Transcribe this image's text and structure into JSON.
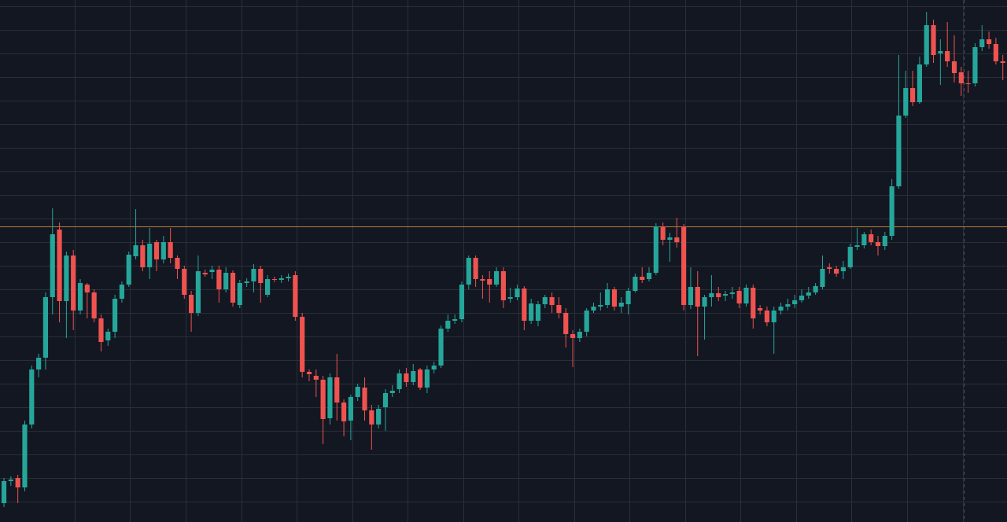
{
  "chart_data": {
    "type": "candlestick",
    "open": [
      24,
      52,
      56,
      44,
      124,
      194,
      209,
      286,
      372,
      281,
      339,
      269,
      302,
      292,
      259,
      231,
      242,
      284,
      302,
      338,
      352,
      324,
      356,
      334,
      356,
      336,
      322,
      289,
      266,
      317,
      318,
      321,
      296,
      317,
      276,
      304,
      306,
      322,
      289,
      309,
      308,
      310,
      314,
      261,
      191,
      186,
      181,
      132,
      184,
      152,
      129,
      159,
      171,
      142,
      124,
      146,
      164,
      169,
      189,
      178,
      194,
      171,
      194,
      199,
      246,
      256,
      258,
      302,
      336,
      309,
      309,
      302,
      319,
      284,
      286,
      297,
      256,
      256,
      277,
      286,
      276,
      266,
      239,
      234,
      242,
      269,
      274,
      276,
      296,
      274,
      277,
      294,
      312,
      309,
      317,
      376,
      359,
      362,
      376,
      276,
      299,
      274,
      286,
      291,
      288,
      290,
      294,
      278,
      298,
      272,
      269,
      254,
      269,
      274,
      277,
      282,
      288,
      292,
      299,
      324,
      322,
      319,
      324,
      350,
      352,
      366,
      356,
      351,
      364,
      427,
      517,
      552,
      534,
      582,
      632,
      596,
      599,
      586,
      572,
      558,
      558,
      604,
      614,
      608,
      586
    ],
    "high": [
      56,
      58,
      60,
      129,
      199,
      214,
      292,
      399,
      381,
      344,
      346,
      309,
      304,
      296,
      264,
      246,
      289,
      306,
      344,
      398,
      359,
      374,
      359,
      364,
      374,
      339,
      326,
      294,
      339,
      321,
      326,
      326,
      324,
      320,
      308,
      310,
      328,
      326,
      314,
      312,
      314,
      316,
      319,
      266,
      194,
      194,
      186,
      189,
      214,
      156,
      162,
      176,
      184,
      149,
      149,
      169,
      174,
      194,
      196,
      201,
      196,
      199,
      204,
      250,
      264,
      264,
      306,
      339,
      339,
      314,
      319,
      324,
      324,
      298,
      302,
      300,
      284,
      281,
      289,
      292,
      286,
      272,
      244,
      246,
      272,
      279,
      292,
      304,
      299,
      286,
      298,
      316,
      324,
      324,
      380,
      381,
      368,
      387,
      379,
      324,
      319,
      289,
      314,
      299,
      294,
      299,
      299,
      302,
      302,
      276,
      274,
      274,
      279,
      284,
      289,
      296,
      299,
      304,
      339,
      329,
      326,
      332,
      354,
      374,
      369,
      372,
      364,
      369,
      436,
      594,
      574,
      574,
      592,
      649,
      639,
      614,
      636,
      619,
      579,
      574,
      609,
      632,
      624,
      616,
      594
    ],
    "low": [
      19,
      46,
      24,
      39,
      119,
      184,
      194,
      264,
      254,
      234,
      244,
      264,
      259,
      254,
      217,
      224,
      234,
      279,
      299,
      334,
      319,
      309,
      319,
      329,
      329,
      309,
      284,
      242,
      262,
      312,
      309,
      279,
      292,
      274,
      272,
      299,
      292,
      279,
      286,
      305,
      304,
      306,
      256,
      184,
      179,
      159,
      99,
      124,
      129,
      109,
      104,
      154,
      129,
      92,
      119,
      116,
      159,
      164,
      172,
      174,
      168,
      164,
      189,
      196,
      242,
      252,
      254,
      296,
      299,
      284,
      279,
      299,
      272,
      279,
      282,
      244,
      252,
      249,
      272,
      266,
      259,
      222,
      197,
      229,
      236,
      266,
      269,
      272,
      269,
      266,
      264,
      292,
      304,
      306,
      314,
      352,
      331,
      349,
      269,
      271,
      211,
      232,
      274,
      281,
      281,
      284,
      272,
      274,
      246,
      264,
      249,
      214,
      264,
      269,
      272,
      279,
      284,
      289,
      296,
      316,
      312,
      309,
      322,
      346,
      348,
      352,
      339,
      346,
      359,
      424,
      514,
      529,
      532,
      579,
      584,
      556,
      579,
      559,
      542,
      546,
      554,
      599,
      602,
      582,
      562
    ],
    "close": [
      52,
      54,
      44,
      124,
      194,
      209,
      286,
      366,
      281,
      339,
      269,
      304,
      292,
      259,
      229,
      242,
      284,
      302,
      340,
      352,
      324,
      354,
      334,
      356,
      336,
      322,
      289,
      266,
      319,
      315,
      321,
      296,
      317,
      279,
      304,
      306,
      322,
      304,
      309,
      308,
      310,
      312,
      261,
      191,
      188,
      181,
      131,
      184,
      152,
      128,
      159,
      172,
      142,
      124,
      144,
      164,
      167,
      189,
      178,
      192,
      171,
      194,
      199,
      246,
      256,
      258,
      302,
      336,
      309,
      307,
      302,
      319,
      282,
      286,
      297,
      256,
      278,
      277,
      286,
      276,
      266,
      239,
      234,
      242,
      269,
      274,
      276,
      296,
      274,
      279,
      294,
      312,
      308,
      317,
      376,
      359,
      362,
      356,
      276,
      299,
      274,
      286,
      291,
      286,
      290,
      292,
      278,
      298,
      259,
      269,
      254,
      269,
      274,
      277,
      282,
      288,
      292,
      300,
      322,
      322,
      316,
      324,
      350,
      352,
      366,
      356,
      351,
      364,
      427,
      517,
      552,
      534,
      582,
      632,
      594,
      599,
      586,
      571,
      558,
      558,
      604,
      614,
      608,
      586,
      584
    ],
    "up_color": "#26a69a",
    "down_color": "#ef5350",
    "ylim": [
      0,
      664
    ],
    "yticks": [
      26,
      56,
      86,
      116,
      146,
      176,
      206,
      236,
      266,
      296,
      326,
      356,
      386,
      416,
      446,
      476,
      506,
      536,
      566,
      596,
      626,
      656
    ],
    "xlim": [
      -0.57,
      144.6
    ],
    "xticks": [
      10.2,
      18.2,
      26.2,
      34.2,
      42.2,
      50.2,
      58.2,
      66.2,
      74.2,
      82.2,
      90.2,
      98.2,
      106.2,
      114.2,
      122.2,
      130.2,
      138.2
    ],
    "grid": true,
    "price_line": 376,
    "price_line_color": "#b8803a",
    "crosshair_x": 138.4
  }
}
